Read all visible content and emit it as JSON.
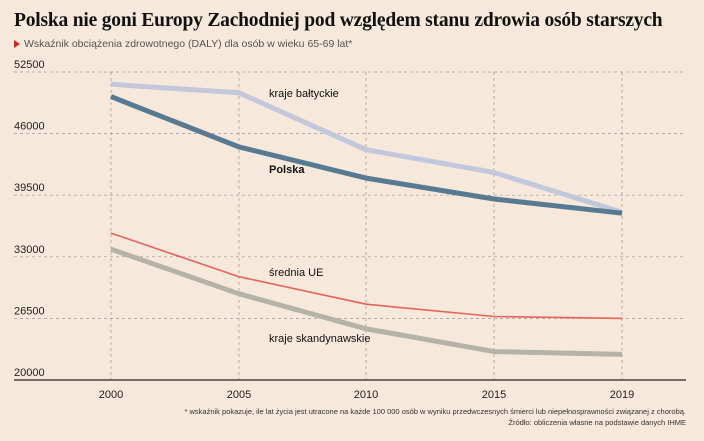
{
  "header": {
    "title": "Polska nie goni Europy Zachodniej pod względem stanu zdrowia osób starszych",
    "subtitle": "Wskaźnik obciążenia zdrowotnego (DALY) dla osób w wieku 65-69 lat*",
    "subtitle_marker": "red-triangle-icon"
  },
  "footer": {
    "note": "* wskaźnik pokazuje, ile lat życia jest utracone na każde 100 000 osób w wyniku przedwczesnych śmierci lub niepełnosprawności związanej z chorobą.",
    "source": "Źródło: obliczenia własne na podstawie danych IHME"
  },
  "chart_data": {
    "type": "line",
    "x": [
      2000,
      2005,
      2010,
      2015,
      2019
    ],
    "x_tick_labels": [
      "2000",
      "2005",
      "2010",
      "2015",
      "2019"
    ],
    "y_ticks": [
      20000,
      26500,
      33000,
      39500,
      46000,
      52500
    ],
    "y_tick_labels": [
      "20000",
      "26500",
      "33000",
      "39500",
      "46000",
      "52500"
    ],
    "ylim": [
      20000,
      52500
    ],
    "grid": "dashed",
    "series": [
      {
        "name": "kraje bałtyckie",
        "values": [
          51200,
          50300,
          44300,
          41900,
          37700
        ],
        "color": "#c3c7dc",
        "width": 5,
        "bold": false
      },
      {
        "name": "Polska",
        "values": [
          49900,
          44600,
          41300,
          39100,
          37600
        ],
        "color": "#577a92",
        "width": 5,
        "bold": true
      },
      {
        "name": "średnia UE",
        "values": [
          35500,
          30900,
          28000,
          26700,
          26500
        ],
        "color": "#e7625a",
        "width": 1.6,
        "bold": false
      },
      {
        "name": "kraje skandynawskie",
        "values": [
          33800,
          29100,
          25400,
          23000,
          22700
        ],
        "color": "#b5b3a7",
        "width": 5,
        "bold": false
      }
    ]
  }
}
